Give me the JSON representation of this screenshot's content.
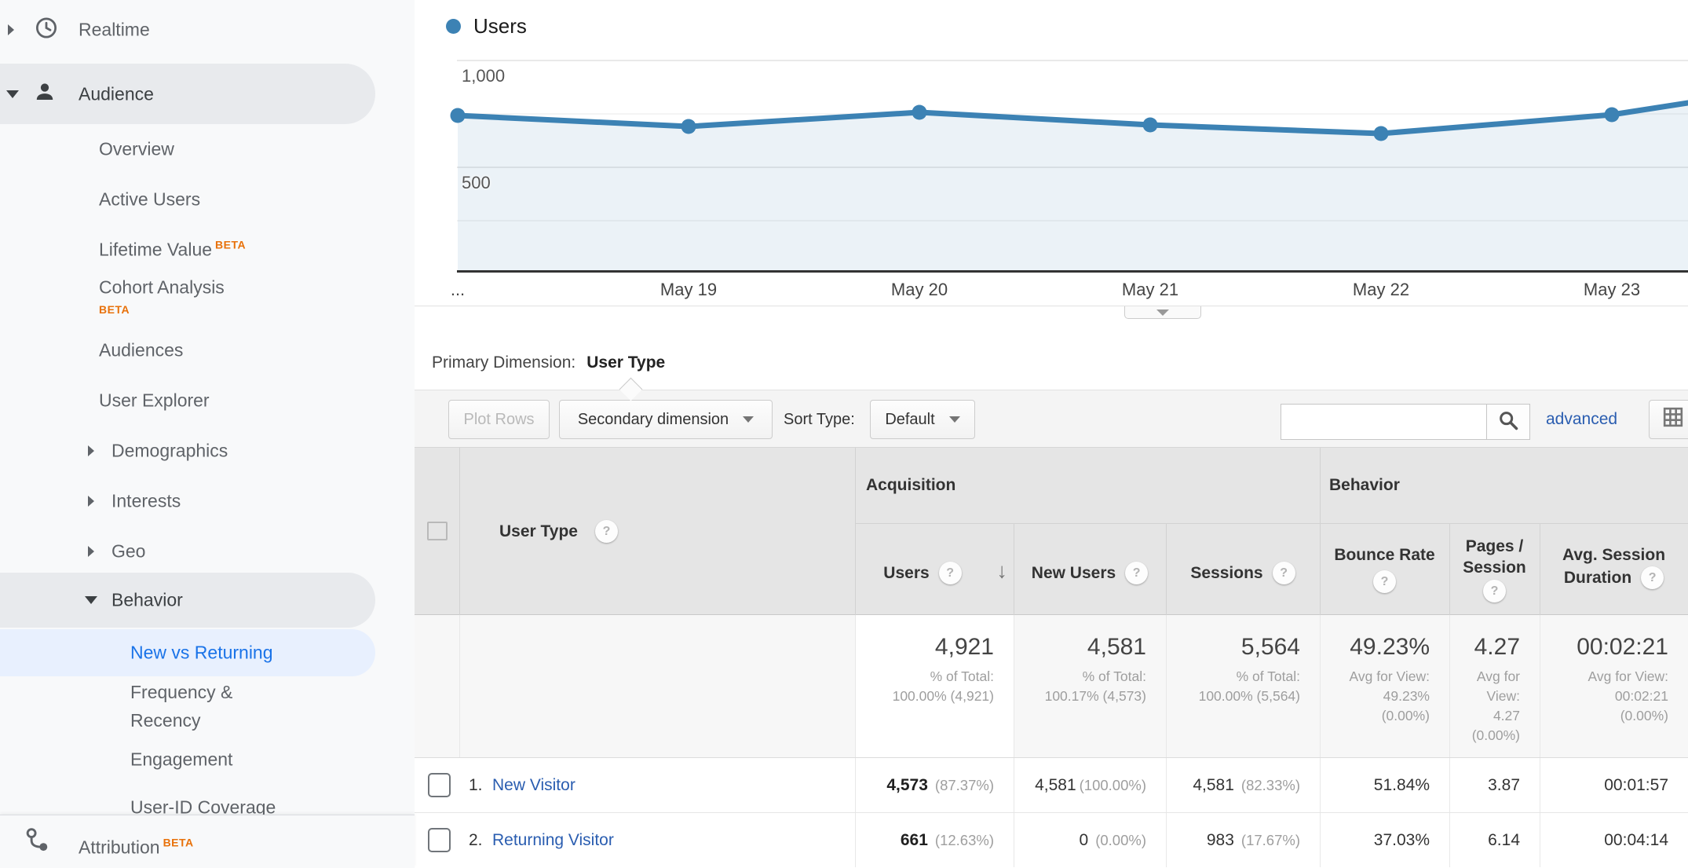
{
  "colors": {
    "accent_blue": "#1a73e8",
    "beta_orange": "#e8710a",
    "chart_blue": "#3c82b4",
    "link_blue": "#2a5db0"
  },
  "icons": {
    "help": "?",
    "sort_descending": "↓"
  },
  "sidebar": {
    "realtime": "Realtime",
    "audience": "Audience",
    "overview": "Overview",
    "active_users": "Active Users",
    "lifetime_value": "Lifetime Value",
    "cohort_analysis": "Cohort Analysis",
    "audiences": "Audiences",
    "user_explorer": "User Explorer",
    "demographics": "Demographics",
    "interests": "Interests",
    "geo": "Geo",
    "behavior": "Behavior",
    "new_vs_returning": "New vs Returning",
    "frequency_recency": "Frequency & Recency",
    "engagement": "Engagement",
    "user_id_coverage": "User-ID Coverage",
    "attribution": "Attribution",
    "beta_label": "BETA"
  },
  "chart_data": {
    "type": "line",
    "x": [
      "...",
      "May 19",
      "May 20",
      "May 21",
      "May 22",
      "May 23"
    ],
    "series": [
      {
        "name": "Users",
        "color": "#3c82b4",
        "values": [
          740,
          690,
          755,
          695,
          655,
          745
        ],
        "edge_value": 800
      }
    ],
    "yticks": [
      "1,000",
      "500"
    ],
    "ylim": [
      0,
      1250
    ],
    "grid": "horizontal",
    "legend_position": "top-left"
  },
  "primary_dimension": {
    "label": "Primary Dimension:",
    "value": "User Type"
  },
  "toolbar": {
    "plot_rows": "Plot Rows",
    "secondary_dimension": "Secondary dimension",
    "sort_type_label": "Sort Type:",
    "sort_default": "Default",
    "search_value": "",
    "advanced": "advanced"
  },
  "table": {
    "groups": {
      "acquisition": "Acquisition",
      "behavior": "Behavior"
    },
    "columns": {
      "user_type": "User Type",
      "users": "Users",
      "new_users": "New Users",
      "sessions": "Sessions",
      "bounce_rate": "Bounce Rate",
      "pages_session_line1": "Pages /",
      "pages_session_line2": "Session",
      "avg_duration_line1": "Avg. Session",
      "avg_duration_line2": "Duration"
    },
    "summary": {
      "users": {
        "value": "4,921",
        "line1": "% of Total:",
        "line2": "100.00% (4,921)"
      },
      "new_users": {
        "value": "4,581",
        "line1": "% of Total:",
        "line2": "100.17% (4,573)"
      },
      "sessions": {
        "value": "5,564",
        "line1": "% of Total:",
        "line2": "100.00% (5,564)"
      },
      "bounce_rate": {
        "value": "49.23%",
        "line1": "Avg for View:",
        "line2": "49.23%",
        "line3": "(0.00%)"
      },
      "pages_session": {
        "value": "4.27",
        "line1": "Avg for",
        "line2": "View:",
        "line3": "4.27",
        "line4": "(0.00%)"
      },
      "avg_duration": {
        "value": "00:02:21",
        "line1": "Avg for View:",
        "line2": "00:02:21",
        "line3": "(0.00%)"
      }
    },
    "rows": [
      {
        "index": "1.",
        "label": "New Visitor",
        "users": "4,573",
        "users_pct": "(87.37%)",
        "new_users": "4,581",
        "new_users_pct": "(100.00%)",
        "sessions": "4,581",
        "sessions_pct": "(82.33%)",
        "bounce": "51.84%",
        "pages": "3.87",
        "duration": "00:01:57"
      },
      {
        "index": "2.",
        "label": "Returning Visitor",
        "users": "661",
        "users_pct": "(12.63%)",
        "new_users": "0",
        "new_users_pct": "(0.00%)",
        "sessions": "983",
        "sessions_pct": "(17.67%)",
        "bounce": "37.03%",
        "pages": "6.14",
        "duration": "00:04:14"
      }
    ]
  }
}
